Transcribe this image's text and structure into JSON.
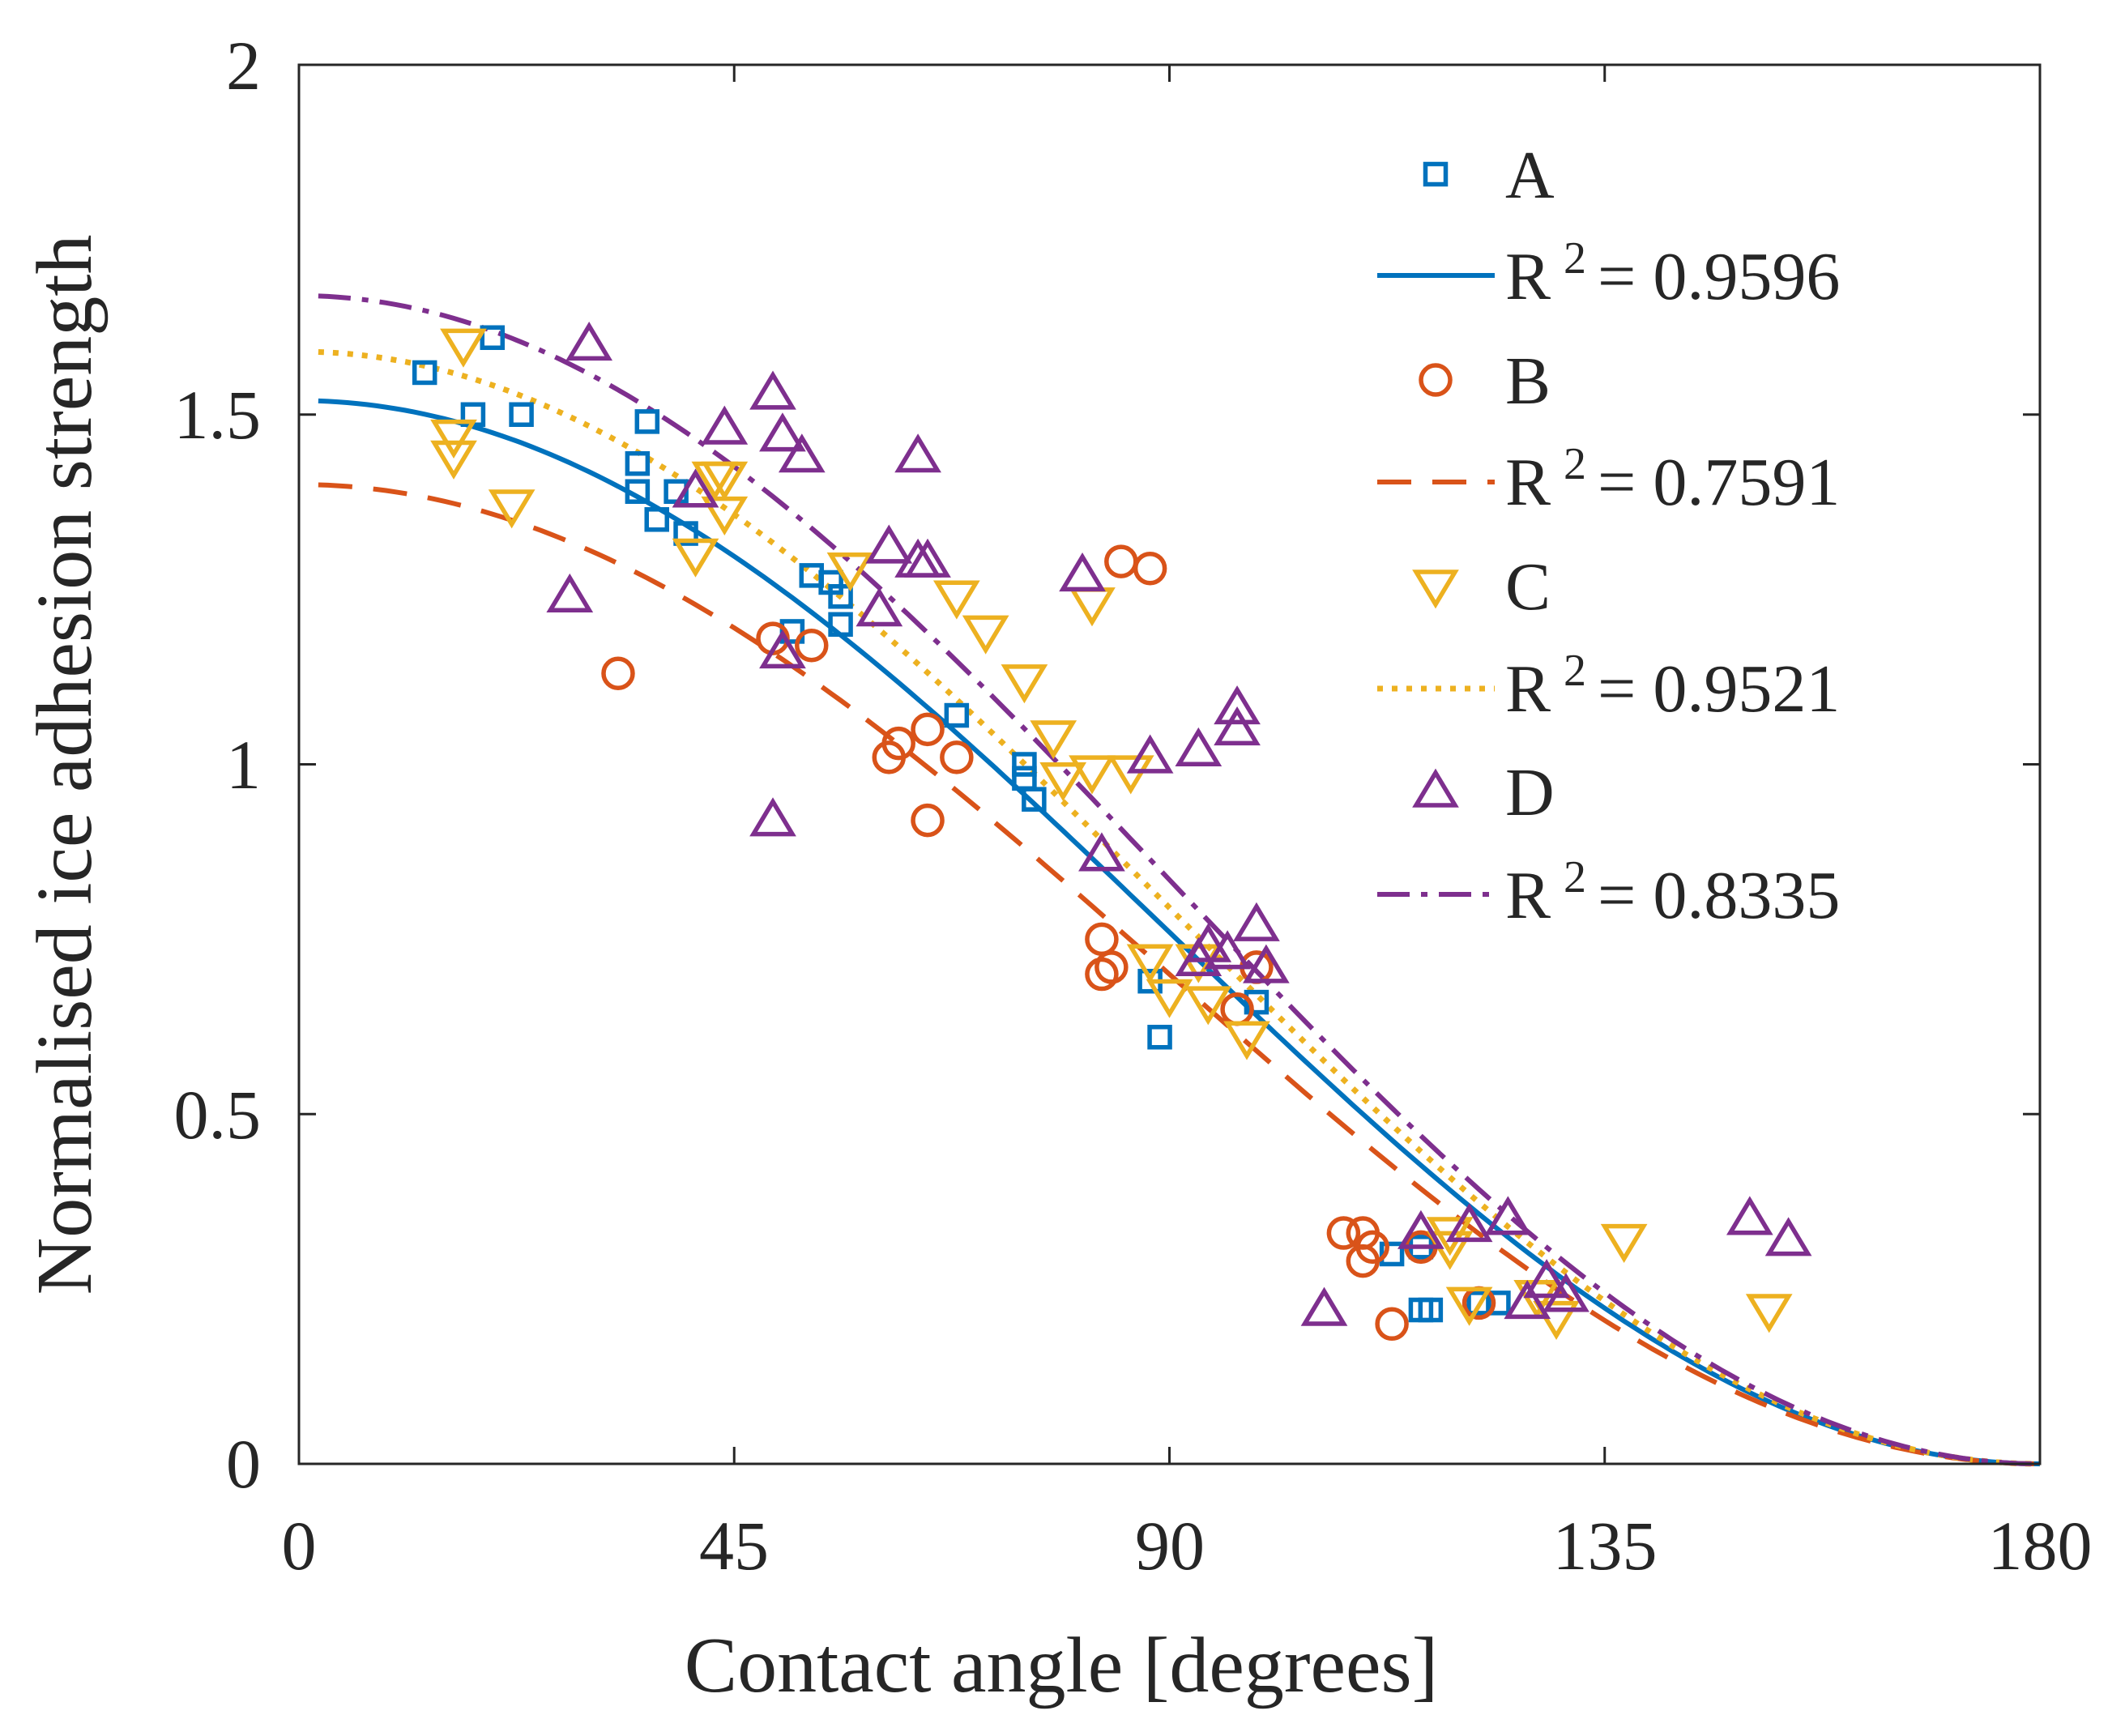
{
  "chart_data": {
    "type": "scatter",
    "xlabel": "Contact angle [degrees]",
    "ylabel": "Normalised ice adhesion strength",
    "xlim": [
      0,
      180
    ],
    "ylim": [
      0,
      2
    ],
    "xticks": [
      "0",
      "45",
      "90",
      "135",
      "180"
    ],
    "yticks": [
      "0",
      "0.5",
      "1",
      "1.5",
      "2"
    ],
    "legend_position": "top-right",
    "series": [
      {
        "name": "A",
        "marker": "square",
        "color": "#0072BD",
        "fit_label": "R",
        "fit_exp": "2",
        "fit_value": "= 0.9596",
        "fit_style": "solid",
        "fit_peak": 1.52,
        "points": [
          [
            13,
            1.56
          ],
          [
            18,
            1.5
          ],
          [
            20,
            1.61
          ],
          [
            23,
            1.5
          ],
          [
            35,
            1.43
          ],
          [
            35,
            1.39
          ],
          [
            36,
            1.49
          ],
          [
            37,
            1.35
          ],
          [
            39,
            1.39
          ],
          [
            40,
            1.33
          ],
          [
            51,
            1.19
          ],
          [
            53,
            1.27
          ],
          [
            55,
            1.26
          ],
          [
            56,
            1.2
          ],
          [
            56,
            1.24
          ],
          [
            68,
            1.07
          ],
          [
            75,
            1.0
          ],
          [
            75,
            0.98
          ],
          [
            76,
            0.95
          ],
          [
            88,
            0.69
          ],
          [
            89,
            0.61
          ],
          [
            99,
            0.66
          ],
          [
            113,
            0.3
          ],
          [
            116,
            0.31
          ],
          [
            116,
            0.22
          ],
          [
            117,
            0.22
          ],
          [
            122,
            0.23
          ],
          [
            124,
            0.23
          ]
        ]
      },
      {
        "name": "B",
        "marker": "circle",
        "color": "#D95319",
        "fit_label": "R",
        "fit_exp": "2",
        "fit_value": "= 0.7591",
        "fit_style": "dashed",
        "fit_peak": 1.4,
        "points": [
          [
            33,
            1.13
          ],
          [
            49,
            1.18
          ],
          [
            53,
            1.17
          ],
          [
            61,
            1.01
          ],
          [
            62,
            1.03
          ],
          [
            65,
            1.05
          ],
          [
            65,
            0.92
          ],
          [
            68,
            1.01
          ],
          [
            83,
            0.75
          ],
          [
            83,
            0.7
          ],
          [
            84,
            0.71
          ],
          [
            85,
            1.29
          ],
          [
            88,
            1.28
          ],
          [
            97,
            0.65
          ],
          [
            99,
            0.71
          ],
          [
            108,
            0.33
          ],
          [
            110,
            0.29
          ],
          [
            110,
            0.33
          ],
          [
            111,
            0.31
          ],
          [
            113,
            0.2
          ],
          [
            116,
            0.31
          ],
          [
            122,
            0.23
          ]
        ]
      },
      {
        "name": "C",
        "marker": "triangle-down",
        "color": "#EDB120",
        "fit_label": "R",
        "fit_exp": "2",
        "fit_value": "= 0.9521",
        "fit_style": "dotted",
        "fit_peak": 1.59,
        "points": [
          [
            16,
            1.44
          ],
          [
            16,
            1.47
          ],
          [
            17,
            1.6
          ],
          [
            22,
            1.37
          ],
          [
            41,
            1.3
          ],
          [
            43,
            1.41
          ],
          [
            44,
            1.36
          ],
          [
            44,
            1.41
          ],
          [
            57,
            1.28
          ],
          [
            68,
            1.24
          ],
          [
            71,
            1.19
          ],
          [
            75,
            1.12
          ],
          [
            78,
            1.04
          ],
          [
            79,
            0.98
          ],
          [
            82,
            0.99
          ],
          [
            82,
            1.23
          ],
          [
            86,
            0.99
          ],
          [
            88,
            0.72
          ],
          [
            90,
            0.67
          ],
          [
            93,
            0.72
          ],
          [
            94,
            0.66
          ],
          [
            98,
            0.61
          ],
          [
            119,
            0.33
          ],
          [
            119,
            0.31
          ],
          [
            121,
            0.23
          ],
          [
            128,
            0.24
          ],
          [
            130,
            0.21
          ],
          [
            137,
            0.32
          ],
          [
            152,
            0.22
          ]
        ]
      },
      {
        "name": "D",
        "marker": "triangle-up",
        "color": "#7E2F8E",
        "fit_label": "R",
        "fit_exp": "2",
        "fit_value": "= 0.8335",
        "fit_style": "dashdot",
        "fit_peak": 1.67,
        "points": [
          [
            28,
            1.24
          ],
          [
            30,
            1.6
          ],
          [
            41,
            1.39
          ],
          [
            44,
            1.48
          ],
          [
            49,
            1.53
          ],
          [
            49,
            0.92
          ],
          [
            50,
            1.16
          ],
          [
            50,
            1.47
          ],
          [
            52,
            1.44
          ],
          [
            60,
            1.22
          ],
          [
            61,
            1.31
          ],
          [
            64,
            1.29
          ],
          [
            64,
            1.44
          ],
          [
            65,
            1.29
          ],
          [
            81,
            1.27
          ],
          [
            83,
            0.87
          ],
          [
            88,
            1.01
          ],
          [
            93,
            0.72
          ],
          [
            93,
            1.02
          ],
          [
            94,
            0.74
          ],
          [
            96,
            0.73
          ],
          [
            97,
            1.05
          ],
          [
            97,
            1.08
          ],
          [
            99,
            0.77
          ],
          [
            100,
            0.71
          ],
          [
            106,
            0.22
          ],
          [
            116,
            0.33
          ],
          [
            121,
            0.34
          ],
          [
            125,
            0.35
          ],
          [
            127,
            0.23
          ],
          [
            129,
            0.26
          ],
          [
            131,
            0.24
          ],
          [
            150,
            0.35
          ],
          [
            154,
            0.32
          ]
        ]
      }
    ]
  }
}
